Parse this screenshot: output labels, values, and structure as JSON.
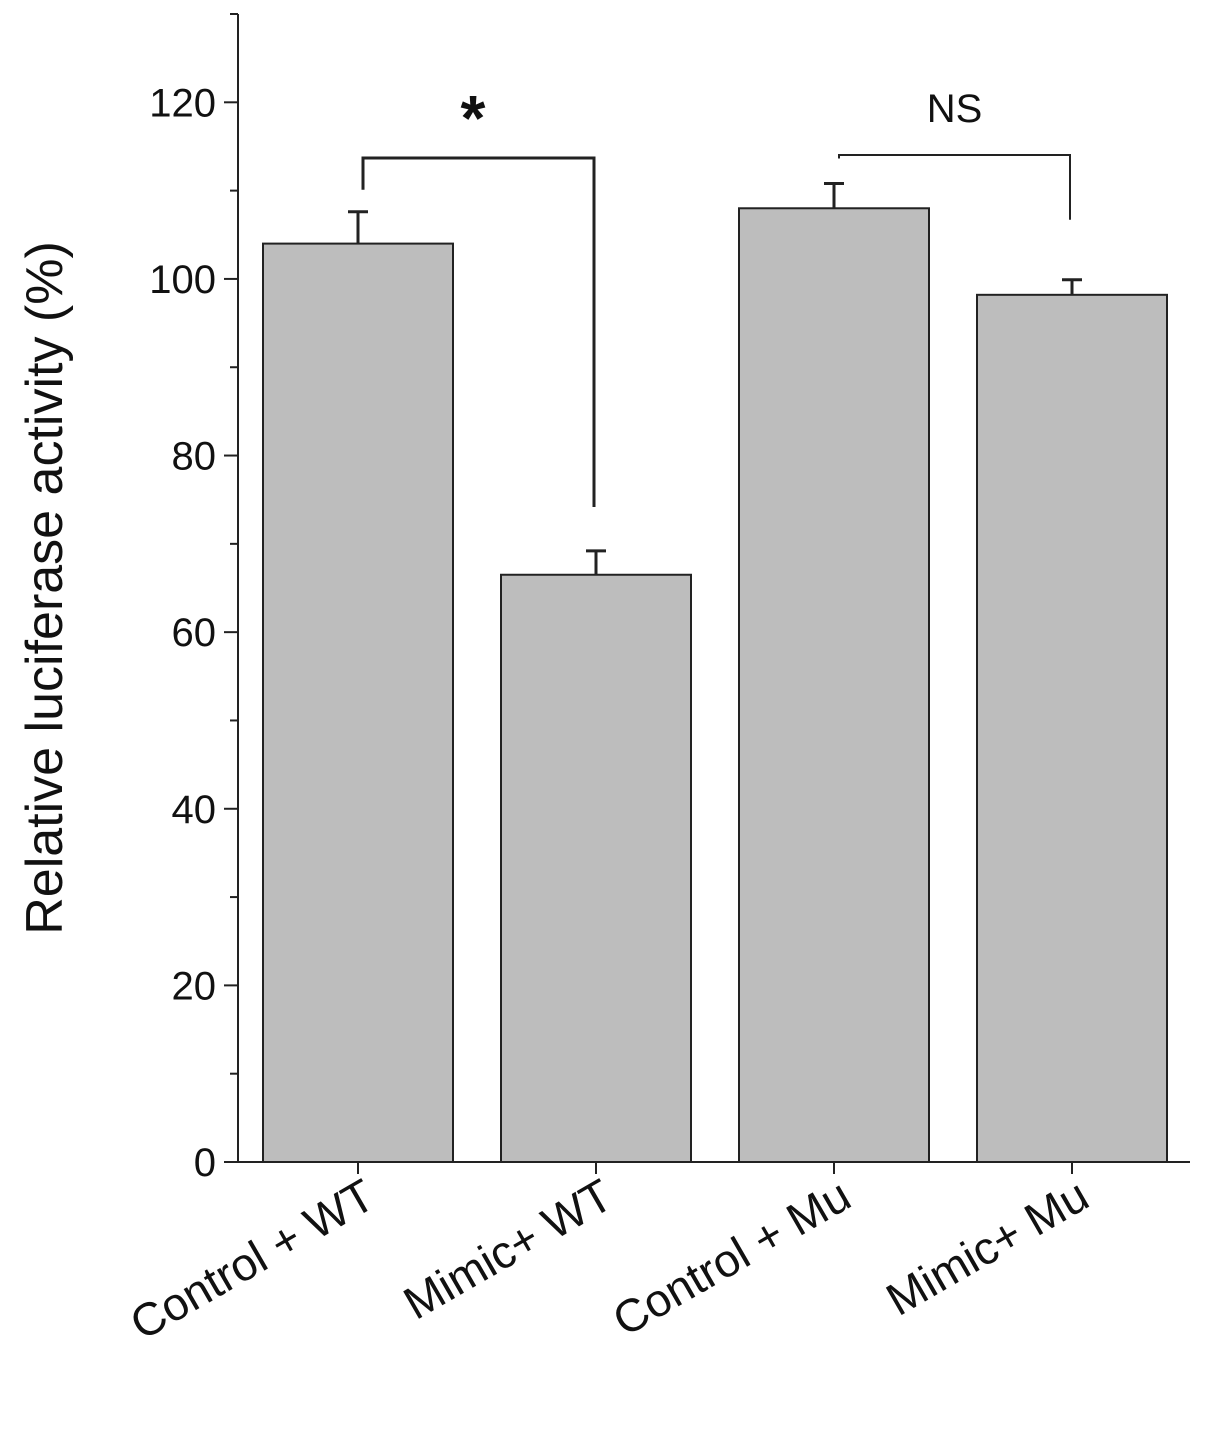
{
  "chart_data": {
    "type": "bar",
    "categories": [
      "Control + WT",
      "Mimic+ WT",
      "Control + Mu",
      "Mimic+ Mu"
    ],
    "values": [
      104,
      66.5,
      108,
      98.2
    ],
    "errors": [
      3.6,
      2.7,
      2.8,
      1.7
    ],
    "ylabel": "Relative luciferase activity (%)",
    "ylim": [
      0,
      130
    ],
    "yticks": [
      "0",
      "20",
      "40",
      "60",
      "80",
      "100",
      "120"
    ],
    "bar_color": "#bdbdbd",
    "comparisons": [
      {
        "from": 0,
        "to": 1,
        "label": "*"
      },
      {
        "from": 2,
        "to": 3,
        "label": "NS"
      }
    ]
  }
}
